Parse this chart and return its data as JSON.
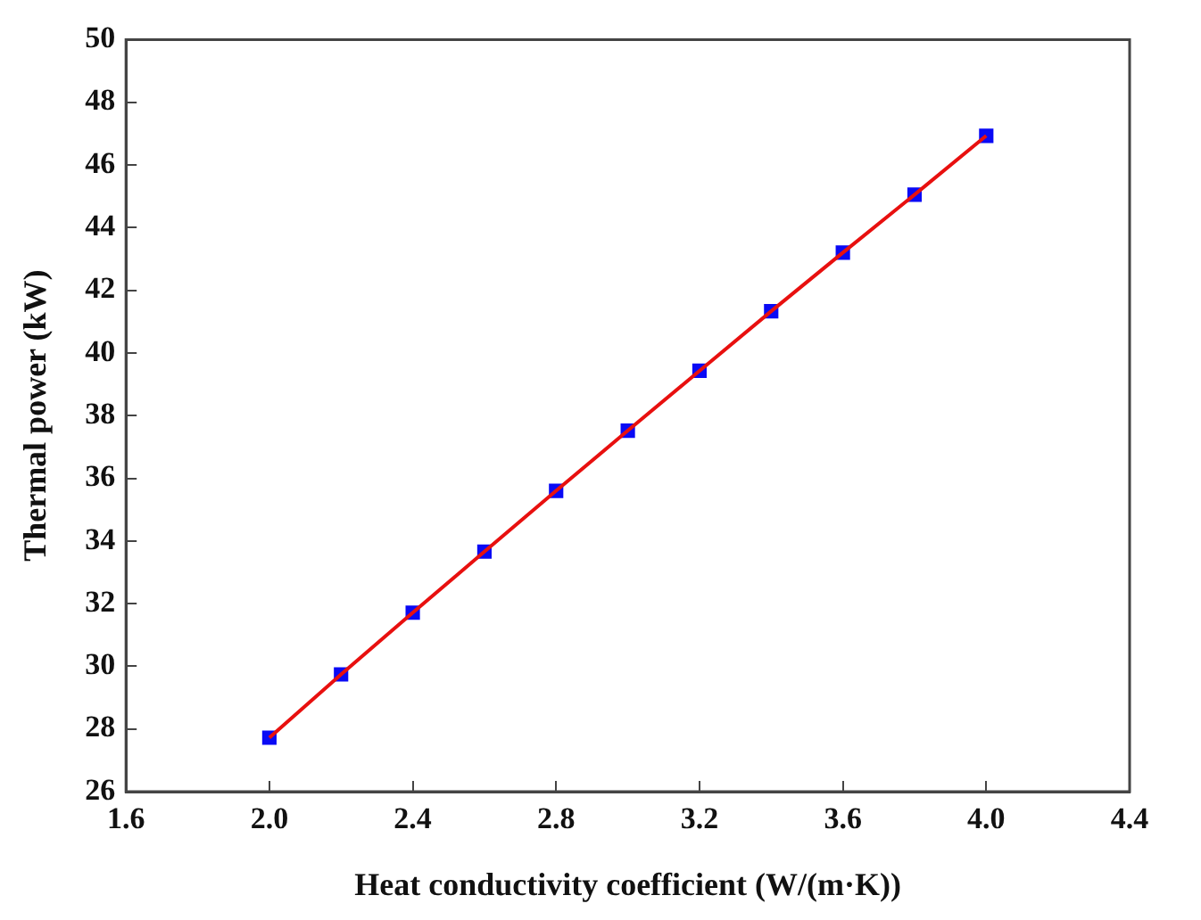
{
  "chart_data": {
    "type": "line",
    "xlabel": "Heat conductivity coefficient (W/(m·K))",
    "ylabel": "Thermal power (kW)",
    "x": [
      2.0,
      2.2,
      2.4,
      2.6,
      2.8,
      3.0,
      3.2,
      3.4,
      3.6,
      3.8,
      4.0
    ],
    "series": [
      {
        "type": "line",
        "color": "#e8100f",
        "marker": "none",
        "values": [
          27.72,
          29.74,
          31.71,
          33.66,
          35.6,
          37.52,
          39.43,
          41.33,
          43.2,
          45.05,
          46.93
        ]
      },
      {
        "type": "scatter",
        "color": "#0a0af5",
        "marker": "square",
        "values": [
          27.72,
          29.74,
          31.71,
          33.66,
          35.6,
          37.52,
          39.43,
          41.33,
          43.2,
          45.05,
          46.93
        ]
      }
    ],
    "xlim": [
      1.6,
      4.4
    ],
    "xticks": [
      {
        "value": 1.6,
        "label": "1.6"
      },
      {
        "value": 2.0,
        "label": "2.0"
      },
      {
        "value": 2.4,
        "label": "2.4"
      },
      {
        "value": 2.8,
        "label": "2.8"
      },
      {
        "value": 3.2,
        "label": "3.2"
      },
      {
        "value": 3.6,
        "label": "3.6"
      },
      {
        "value": 4.0,
        "label": "4.0"
      },
      {
        "value": 4.4,
        "label": "4.4"
      }
    ],
    "ylim": [
      26,
      50
    ],
    "yticks": [
      26,
      28,
      30,
      32,
      34,
      36,
      38,
      40,
      42,
      44,
      46,
      48,
      50
    ],
    "grid": false,
    "legend": false
  }
}
